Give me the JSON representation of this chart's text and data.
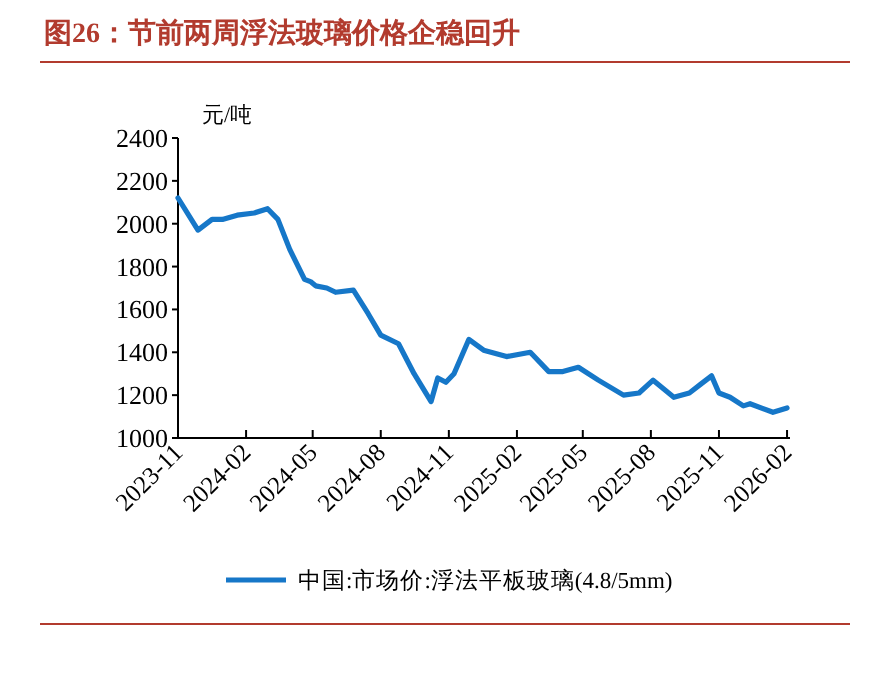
{
  "chart_data": {
    "type": "line",
    "title": "图26：节前两周浮法玻璃价格企稳回升",
    "ylabel": "元/吨",
    "xlim": [
      "2023-11-01",
      "2026-02-05"
    ],
    "xticks": [
      {
        "value": "2023-11-01",
        "label": "2023-11"
      },
      {
        "value": "2024-02-01",
        "label": "2024-02"
      },
      {
        "value": "2024-05-01",
        "label": "2024-05"
      },
      {
        "value": "2024-08-01",
        "label": "2024-08"
      },
      {
        "value": "2024-11-01",
        "label": "2024-11"
      },
      {
        "value": "2025-02-01",
        "label": "2025-02"
      },
      {
        "value": "2025-05-01",
        "label": "2025-05"
      },
      {
        "value": "2025-08-01",
        "label": "2025-08"
      },
      {
        "value": "2025-11-01",
        "label": "2025-11"
      },
      {
        "value": "2026-02-01",
        "label": "2026-02"
      }
    ],
    "ylim": [
      1000,
      2400
    ],
    "yticks": [
      1000,
      1200,
      1400,
      1600,
      1800,
      2000,
      2200,
      2400
    ],
    "grid": false,
    "legend": "bottom",
    "marker": "none",
    "line_style": "solid",
    "x": [
      "2023-11-01",
      "2023-11-28",
      "2023-12-17",
      "2023-12-31",
      "2024-01-20",
      "2024-02-12",
      "2024-03-01",
      "2024-03-15",
      "2024-03-31",
      "2024-04-20",
      "2024-04-28",
      "2024-05-05",
      "2024-05-20",
      "2024-06-01",
      "2024-06-25",
      "2024-07-15",
      "2024-08-01",
      "2024-08-25",
      "2024-09-15",
      "2024-10-08",
      "2024-10-17",
      "2024-10-28",
      "2024-11-08",
      "2024-11-28",
      "2024-12-18",
      "2025-01-18",
      "2025-02-19",
      "2025-03-16",
      "2025-04-04",
      "2025-04-25",
      "2025-05-22",
      "2025-06-25",
      "2025-07-16",
      "2025-08-04",
      "2025-09-01",
      "2025-09-22",
      "2025-10-07",
      "2025-10-22",
      "2025-11-01",
      "2025-11-16",
      "2025-12-04",
      "2025-12-13",
      "2026-01-13",
      "2026-02-01"
    ],
    "series": [
      {
        "name": "中国:市场价:浮法平板玻璃(4.8/5mm)",
        "color": "#1677c8",
        "values": [
          2120,
          1970,
          2020,
          2020,
          2040,
          2050,
          2070,
          2020,
          1880,
          1740,
          1730,
          1710,
          1700,
          1680,
          1690,
          1580,
          1480,
          1440,
          1300,
          1170,
          1280,
          1260,
          1300,
          1460,
          1410,
          1380,
          1400,
          1310,
          1310,
          1330,
          1270,
          1200,
          1210,
          1270,
          1190,
          1210,
          1250,
          1290,
          1210,
          1190,
          1150,
          1160,
          1120,
          1140
        ]
      }
    ]
  }
}
